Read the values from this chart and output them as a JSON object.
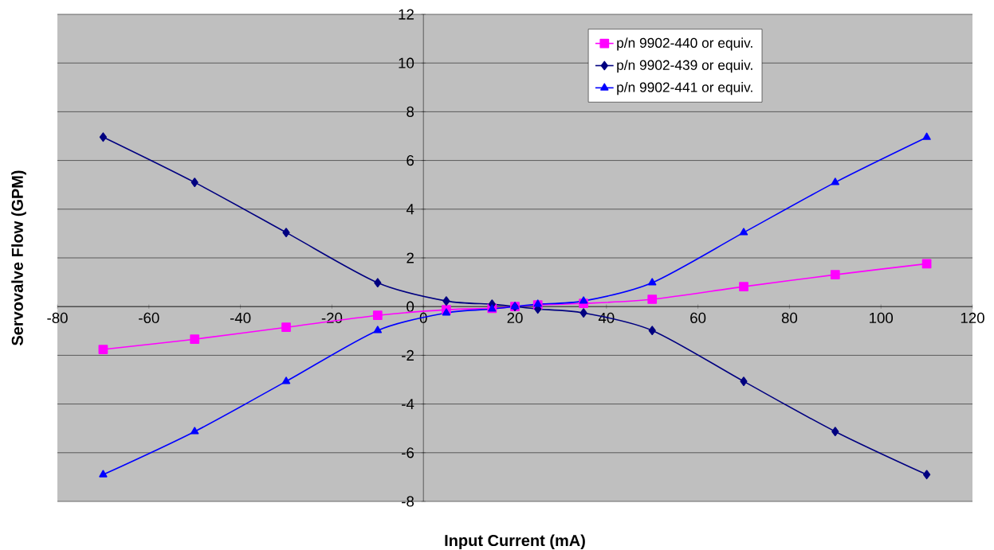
{
  "chart_data": {
    "type": "line",
    "xlabel": "Input Current (mA)",
    "ylabel": "Servovalve Flow (GPM)",
    "xlim": [
      -80,
      120
    ],
    "ylim": [
      -8,
      12
    ],
    "xticks": [
      -80,
      -60,
      -40,
      -20,
      0,
      20,
      40,
      60,
      80,
      100,
      120
    ],
    "yticks": [
      -8,
      -6,
      -4,
      -2,
      0,
      2,
      4,
      6,
      8,
      10,
      12
    ],
    "grid": "y",
    "legend": "top right",
    "line_style": "solid",
    "x": [
      -70,
      -50,
      -30,
      -10,
      5,
      15,
      20,
      25,
      35,
      50,
      70,
      90,
      110
    ],
    "series": [
      {
        "name": "p/n 9902-440 or equiv.",
        "color": "#ff00ff",
        "marker": "square",
        "values": [
          -1.76,
          -1.34,
          -0.85,
          -0.36,
          -0.13,
          -0.07,
          0,
          0.07,
          0.13,
          0.3,
          0.82,
          1.31,
          1.76
        ]
      },
      {
        "name": "p/n 9902-439 or equiv.",
        "color": "#000080",
        "marker": "diamond",
        "values": [
          6.96,
          5.1,
          3.04,
          0.98,
          0.23,
          0.1,
          0,
          -0.1,
          -0.26,
          -0.98,
          -3.07,
          -5.13,
          -6.9
        ]
      },
      {
        "name": "p/n 9902-441 or equiv.",
        "color": "#0000ff",
        "marker": "triangle",
        "values": [
          -6.9,
          -5.13,
          -3.07,
          -0.98,
          -0.26,
          -0.1,
          0,
          0.1,
          0.23,
          0.98,
          3.04,
          5.1,
          6.95
        ]
      }
    ]
  }
}
